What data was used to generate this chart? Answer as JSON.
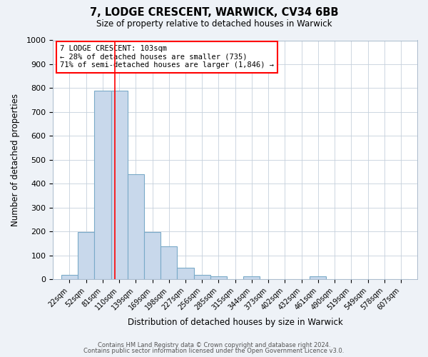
{
  "title1": "7, LODGE CRESCENT, WARWICK, CV34 6BB",
  "title2": "Size of property relative to detached houses in Warwick",
  "xlabel": "Distribution of detached houses by size in Warwick",
  "ylabel": "Number of detached properties",
  "bar_labels": [
    "22sqm",
    "52sqm",
    "81sqm",
    "110sqm",
    "139sqm",
    "169sqm",
    "198sqm",
    "227sqm",
    "256sqm",
    "285sqm",
    "315sqm",
    "344sqm",
    "373sqm",
    "402sqm",
    "432sqm",
    "461sqm",
    "490sqm",
    "519sqm",
    "549sqm",
    "578sqm",
    "607sqm"
  ],
  "bar_centers": [
    22,
    52,
    81,
    110,
    139,
    169,
    198,
    227,
    256,
    285,
    315,
    344,
    373,
    402,
    432,
    461,
    490,
    519,
    549,
    578,
    607
  ],
  "bar_values": [
    20,
    197,
    790,
    790,
    440,
    197,
    140,
    50,
    18,
    12,
    0,
    12,
    0,
    0,
    0,
    12,
    0,
    0,
    0,
    0,
    0
  ],
  "bin_width": 29,
  "bar_color": "#c8d8eb",
  "bar_edge_color": "#7aaac8",
  "red_line_x": 103,
  "ylim": [
    0,
    1000
  ],
  "yticks": [
    0,
    100,
    200,
    300,
    400,
    500,
    600,
    700,
    800,
    900,
    1000
  ],
  "annotation_title": "7 LODGE CRESCENT: 103sqm",
  "annotation_line1": "← 28% of detached houses are smaller (735)",
  "annotation_line2": "71% of semi-detached houses are larger (1,846) →",
  "footer1": "Contains HM Land Registry data © Crown copyright and database right 2024.",
  "footer2": "Contains public sector information licensed under the Open Government Licence v3.0.",
  "bg_color": "#eef2f7",
  "plot_bg_color": "#ffffff",
  "grid_color": "#c5d0dc"
}
